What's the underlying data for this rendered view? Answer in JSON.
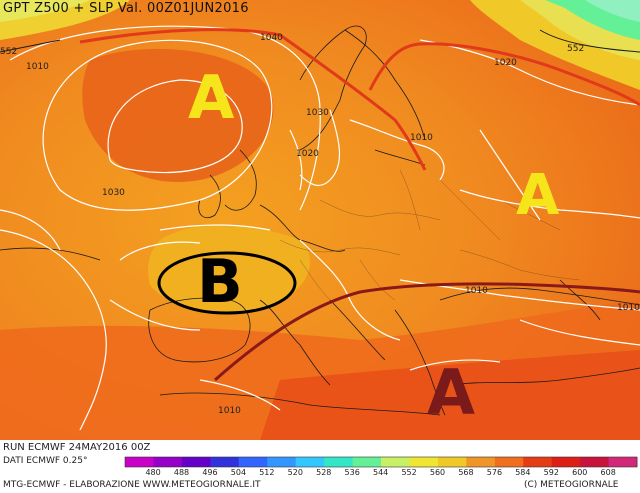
{
  "title": "GPT Z500 + SLP Val. 00Z01JUN2016",
  "footer": {
    "run": "RUN ECMWF  24MAY2016 00Z",
    "dati": "DATI ECMWF 0.25°",
    "credit": "MTG-ECMWF - ELABORAZIONE WWW.METEOGIORNALE.IT",
    "copyright": "(C) METEOGIORNALE"
  },
  "pressure_systems": [
    {
      "letter": "A",
      "color": "#f5e51a"
    },
    {
      "letter": "A",
      "color": "#f5e51a"
    },
    {
      "letter": "B",
      "color": "#000000"
    },
    {
      "letter": "A",
      "color": "#7a1a1a"
    }
  ],
  "isobar_labels": [
    "1040",
    "1010",
    "1030",
    "1020",
    "1030",
    "1010",
    "1020",
    "1010",
    "1010",
    "1010"
  ],
  "geopotential_labels": [
    "552",
    "552"
  ],
  "legend": {
    "values": [
      "480",
      "488",
      "496",
      "504",
      "512",
      "520",
      "528",
      "536",
      "544",
      "552",
      "560",
      "568",
      "576",
      "584",
      "592",
      "600",
      "608"
    ],
    "colors": [
      "#c800c8",
      "#9600c8",
      "#6400c8",
      "#3232dc",
      "#3264ff",
      "#3296ff",
      "#32c8ff",
      "#32e6c8",
      "#64f096",
      "#c8f064",
      "#f0e632",
      "#f0c828",
      "#f09628",
      "#f06e1e",
      "#e63c14",
      "#dc1e14",
      "#c8143c",
      "#d2287a"
    ]
  }
}
